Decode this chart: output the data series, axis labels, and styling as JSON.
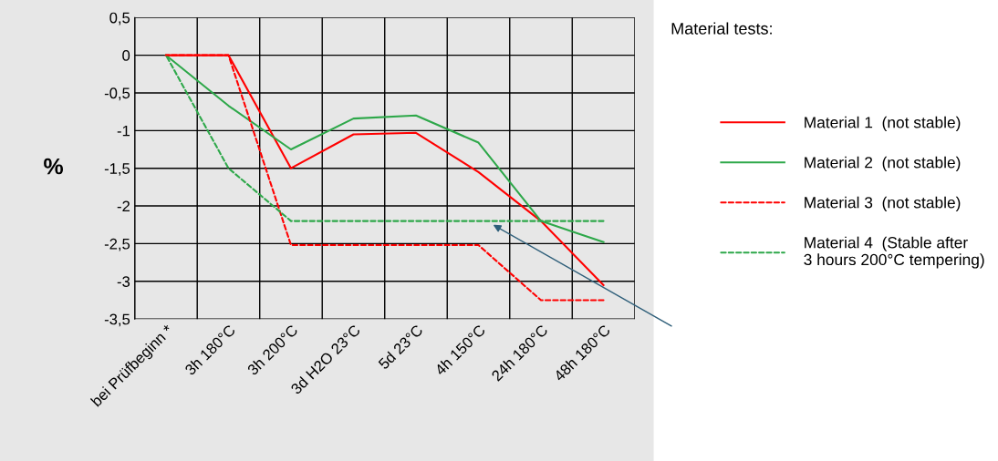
{
  "chart_data": {
    "type": "line",
    "ylabel": "%",
    "legend_title": "Material tests:",
    "legend": "right",
    "grid": true,
    "categories": [
      "bei Prüfbeginn *",
      "3h 180°C",
      "3h 200°C",
      "3d H2O 23°C",
      "5d 23°C",
      "4h 150°C",
      "24h 180°C",
      "48h 180°C"
    ],
    "ylim": [
      -3.5,
      0.5
    ],
    "yticks": [
      {
        "value": -3.5,
        "label": "-3,5"
      },
      -3,
      {
        "value": -2.5,
        "label": "-2,5"
      },
      -2,
      {
        "value": -1.5,
        "label": "-1,5"
      },
      -1,
      {
        "value": -0.5,
        "label": "-0,5"
      },
      0,
      {
        "value": 0.5,
        "label": "0,5"
      }
    ],
    "series": [
      {
        "name": "Material 1  (not stable)",
        "color": "#ff0000",
        "line_style": "solid",
        "values": [
          0,
          0,
          -1.5,
          -1.05,
          -1.03,
          -1.55,
          -2.2,
          -3.05
        ]
      },
      {
        "name": "Material 2  (not stable)",
        "color": "#2ea84a",
        "line_style": "solid",
        "values": [
          0,
          -0.67,
          -1.25,
          -0.84,
          -0.8,
          -1.16,
          -2.2,
          -2.48
        ]
      },
      {
        "name": "Material 3  (not stable)",
        "color": "#ff0000",
        "line_style": "dotted",
        "values": [
          0,
          0,
          -2.52,
          -2.52,
          -2.52,
          -2.52,
          -3.25,
          -3.25
        ]
      },
      {
        "name": "Material 4  (Stable after\n3 hours 200°C tempering)",
        "color": "#2ea84a",
        "line_style": "dotted",
        "values": [
          0,
          -1.5,
          -2.2,
          -2.2,
          -2.2,
          -2.2,
          -2.2,
          -2.2
        ]
      }
    ]
  }
}
